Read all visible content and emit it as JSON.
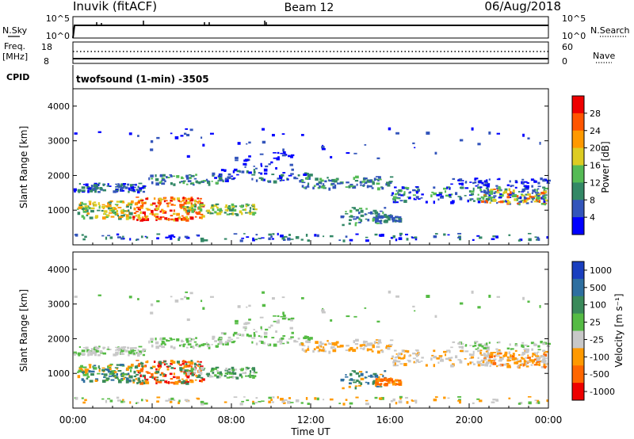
{
  "header": {
    "title": "Inuvik (fitACF)",
    "beam": "Beam 12",
    "date": "06/Aug/2018"
  },
  "top_panels": {
    "nsky_label": "N.Sky",
    "nsky_ticks": [
      "10^5",
      "10^0"
    ],
    "nsearch_label": "N.Search",
    "nsearch_ticks": [
      "10^5",
      "10^0"
    ],
    "freq_label_line1": "Freq.",
    "freq_label_line2": "[MHz]",
    "freq_ticks": [
      "18",
      "8"
    ],
    "nave_label": "Nave",
    "nave_ticks": [
      "60",
      "0"
    ],
    "cpid_label": "CPID",
    "cpid_value": "twofsound (1-min) -3505"
  },
  "chart_data": [
    {
      "type": "heatmap",
      "name": "power",
      "ylabel": "Slant Range [km]",
      "ylim": [
        0,
        4500
      ],
      "yticks": [
        "1000",
        "2000",
        "3000",
        "4000"
      ],
      "colorbar_label": "Power [dB]",
      "colorbar_ticks": [
        "4",
        "8",
        "12",
        "16",
        "20",
        "24",
        "28"
      ],
      "colorbar_range": [
        0,
        32
      ],
      "colors": [
        "#0000ff",
        "#3355bb",
        "#338866",
        "#55bb55",
        "#ddcc22",
        "#ff9900",
        "#ff5500",
        "#ee0000"
      ]
    },
    {
      "type": "heatmap",
      "name": "velocity",
      "ylabel": "Slant Range [km]",
      "ylim": [
        0,
        4500
      ],
      "yticks": [
        "1000",
        "2000",
        "3000",
        "4000"
      ],
      "colorbar_label": "Velocity [m s⁻¹]",
      "colorbar_ticks": [
        "1000",
        "500",
        "100",
        "25",
        "-25",
        "-100",
        "-500",
        "-1000"
      ],
      "colors": [
        "#1a3fbf",
        "#2e6fa0",
        "#3a8a5a",
        "#55bb44",
        "#c8c8c8",
        "#ff9900",
        "#ff6600",
        "#ee0000"
      ]
    }
  ],
  "xaxis": {
    "label": "Time UT",
    "ticks": [
      "00:00",
      "04:00",
      "08:00",
      "12:00",
      "16:00",
      "20:00",
      "00:00"
    ],
    "range_hours": [
      0,
      24
    ]
  }
}
